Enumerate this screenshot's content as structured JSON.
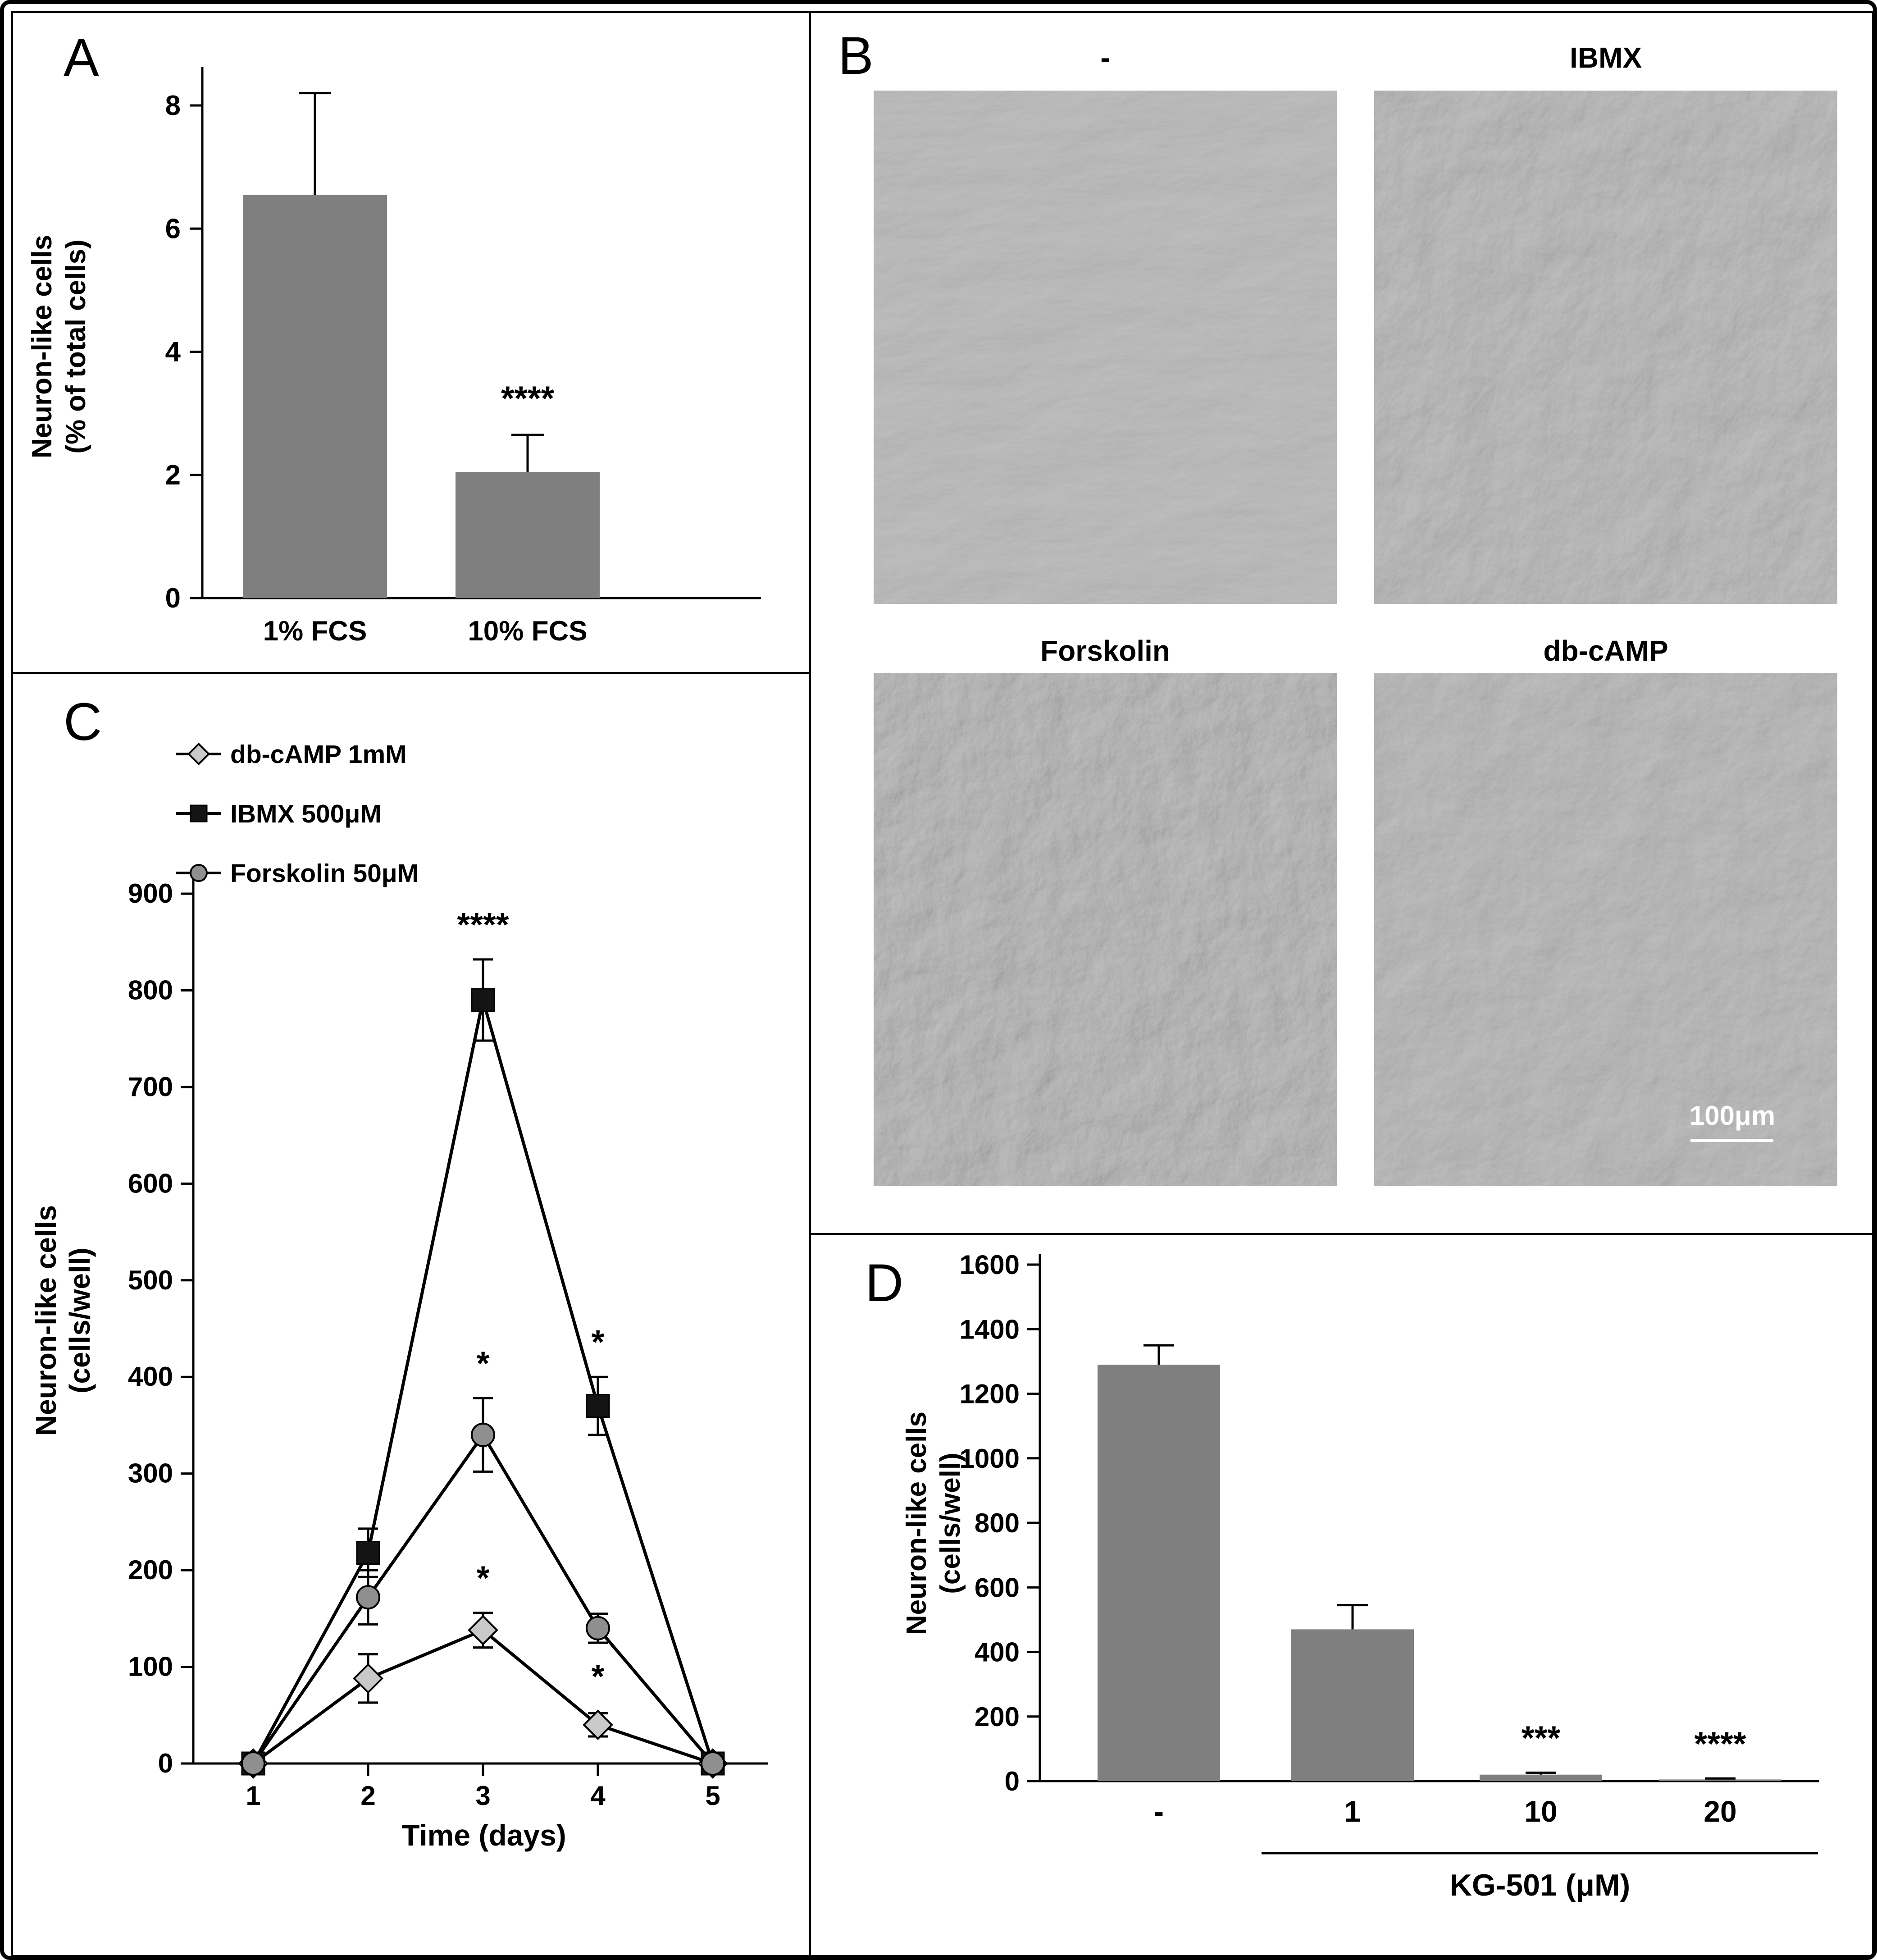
{
  "panels": {
    "A": {
      "label": "A"
    },
    "B": {
      "label": "B",
      "image_labels": [
        "-",
        "IBMX",
        "Forskolin",
        "db-cAMP"
      ],
      "scale_bar_text": "100μm"
    },
    "C": {
      "label": "C"
    },
    "D": {
      "label": "D"
    }
  },
  "chart_data": [
    {
      "id": "A",
      "type": "bar",
      "categories": [
        "1% FCS",
        "10% FCS"
      ],
      "values": [
        6.55,
        2.05
      ],
      "errors": [
        1.65,
        0.6
      ],
      "significance": [
        "",
        "****"
      ],
      "ylabel": "Neuron-like cells (% of total cells)",
      "ylabel_lines": [
        "Neuron-like cells",
        "(% of total cells)"
      ],
      "xlabel": "",
      "ylim": [
        0,
        8
      ],
      "yticks": [
        0,
        2,
        4,
        6,
        8
      ],
      "bar_color": "#7f7f7f",
      "grid": false,
      "legend_position": "none"
    },
    {
      "id": "C",
      "type": "line",
      "x": [
        1,
        2,
        3,
        4,
        5
      ],
      "xlabel": "Time (days)",
      "ylabel": "Neuron-like cells (cells/well)",
      "ylabel_lines": [
        "Neuron-like cells",
        "(cells/well)"
      ],
      "ylim": [
        0,
        900
      ],
      "yticks": [
        0,
        100,
        200,
        300,
        400,
        500,
        600,
        700,
        800,
        900
      ],
      "grid": false,
      "legend_position": "top-left",
      "line_color": "#000000",
      "series": [
        {
          "name": "db-cAMP 1mM",
          "marker": "diamond",
          "marker_fill": "#c9c9c9",
          "values": [
            0,
            88,
            138,
            40,
            0
          ],
          "errors": [
            0,
            25,
            18,
            12,
            0
          ],
          "significance": [
            "",
            "",
            "*",
            "",
            ""
          ],
          "sig_side": [
            "",
            "",
            "above",
            "",
            ""
          ]
        },
        {
          "name": "IBMX 500μM",
          "marker": "square",
          "marker_fill": "#141414",
          "values": [
            0,
            218,
            790,
            370,
            0
          ],
          "errors": [
            4,
            25,
            42,
            30,
            4
          ],
          "significance": [
            "",
            "",
            "****",
            "*",
            ""
          ],
          "sig_side": [
            "",
            "",
            "above",
            "above",
            ""
          ]
        },
        {
          "name": "Forskolin 50μM",
          "marker": "circle",
          "marker_fill": "#8f8f8f",
          "values": [
            0,
            172,
            340,
            140,
            0
          ],
          "errors": [
            4,
            28,
            38,
            15,
            4
          ],
          "significance": [
            "",
            "",
            "*",
            "*",
            ""
          ],
          "sig_side": [
            "",
            "",
            "above",
            "below",
            ""
          ]
        }
      ]
    },
    {
      "id": "D",
      "type": "bar",
      "categories": [
        "-",
        "1",
        "10",
        "20"
      ],
      "values": [
        1290,
        470,
        20,
        5
      ],
      "errors": [
        60,
        75,
        6,
        3
      ],
      "significance": [
        "",
        "",
        "***",
        "****"
      ],
      "ylabel": "Neuron-like cells (cells/well)",
      "ylabel_lines": [
        "Neuron-like cells",
        "(cells/well)"
      ],
      "xlabel": "KG-501 (μM)",
      "x_group_bracket": {
        "categories": [
          "1",
          "10",
          "20"
        ],
        "label": "KG-501 (μM)"
      },
      "ylim": [
        0,
        1600
      ],
      "yticks": [
        0,
        200,
        400,
        600,
        800,
        1000,
        1200,
        1400,
        1600
      ],
      "bar_color": "#7f7f7f",
      "grid": false,
      "legend_position": "none"
    }
  ]
}
